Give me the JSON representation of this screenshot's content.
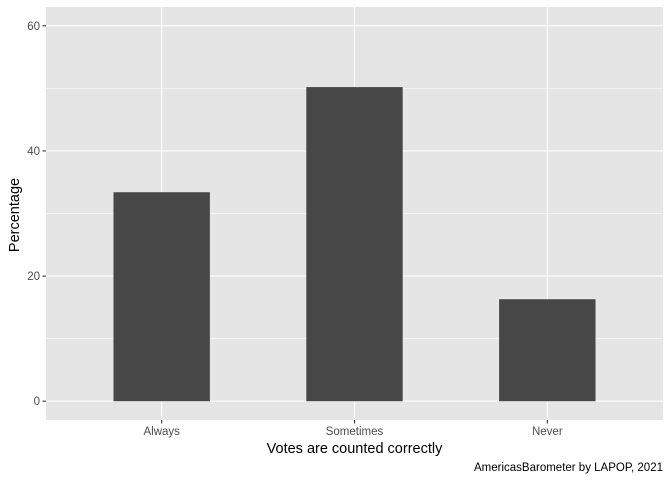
{
  "chart_data": {
    "type": "bar",
    "categories": [
      "Always",
      "Sometimes",
      "Never"
    ],
    "values": [
      33.4,
      50.2,
      16.3
    ],
    "xlabel": "Votes are counted correctly",
    "ylabel": "Percentage",
    "ylim": [
      -3,
      63
    ],
    "yticks": [
      0,
      20,
      40,
      60
    ],
    "caption": "AmericasBarometer by LAPOP, 2021",
    "grid": true,
    "colors": {
      "bar": "#474747",
      "panel": "#e5e5e5",
      "grid": "#ffffff",
      "tick_text": "#4d4d4d",
      "title_text": "#000000"
    }
  }
}
